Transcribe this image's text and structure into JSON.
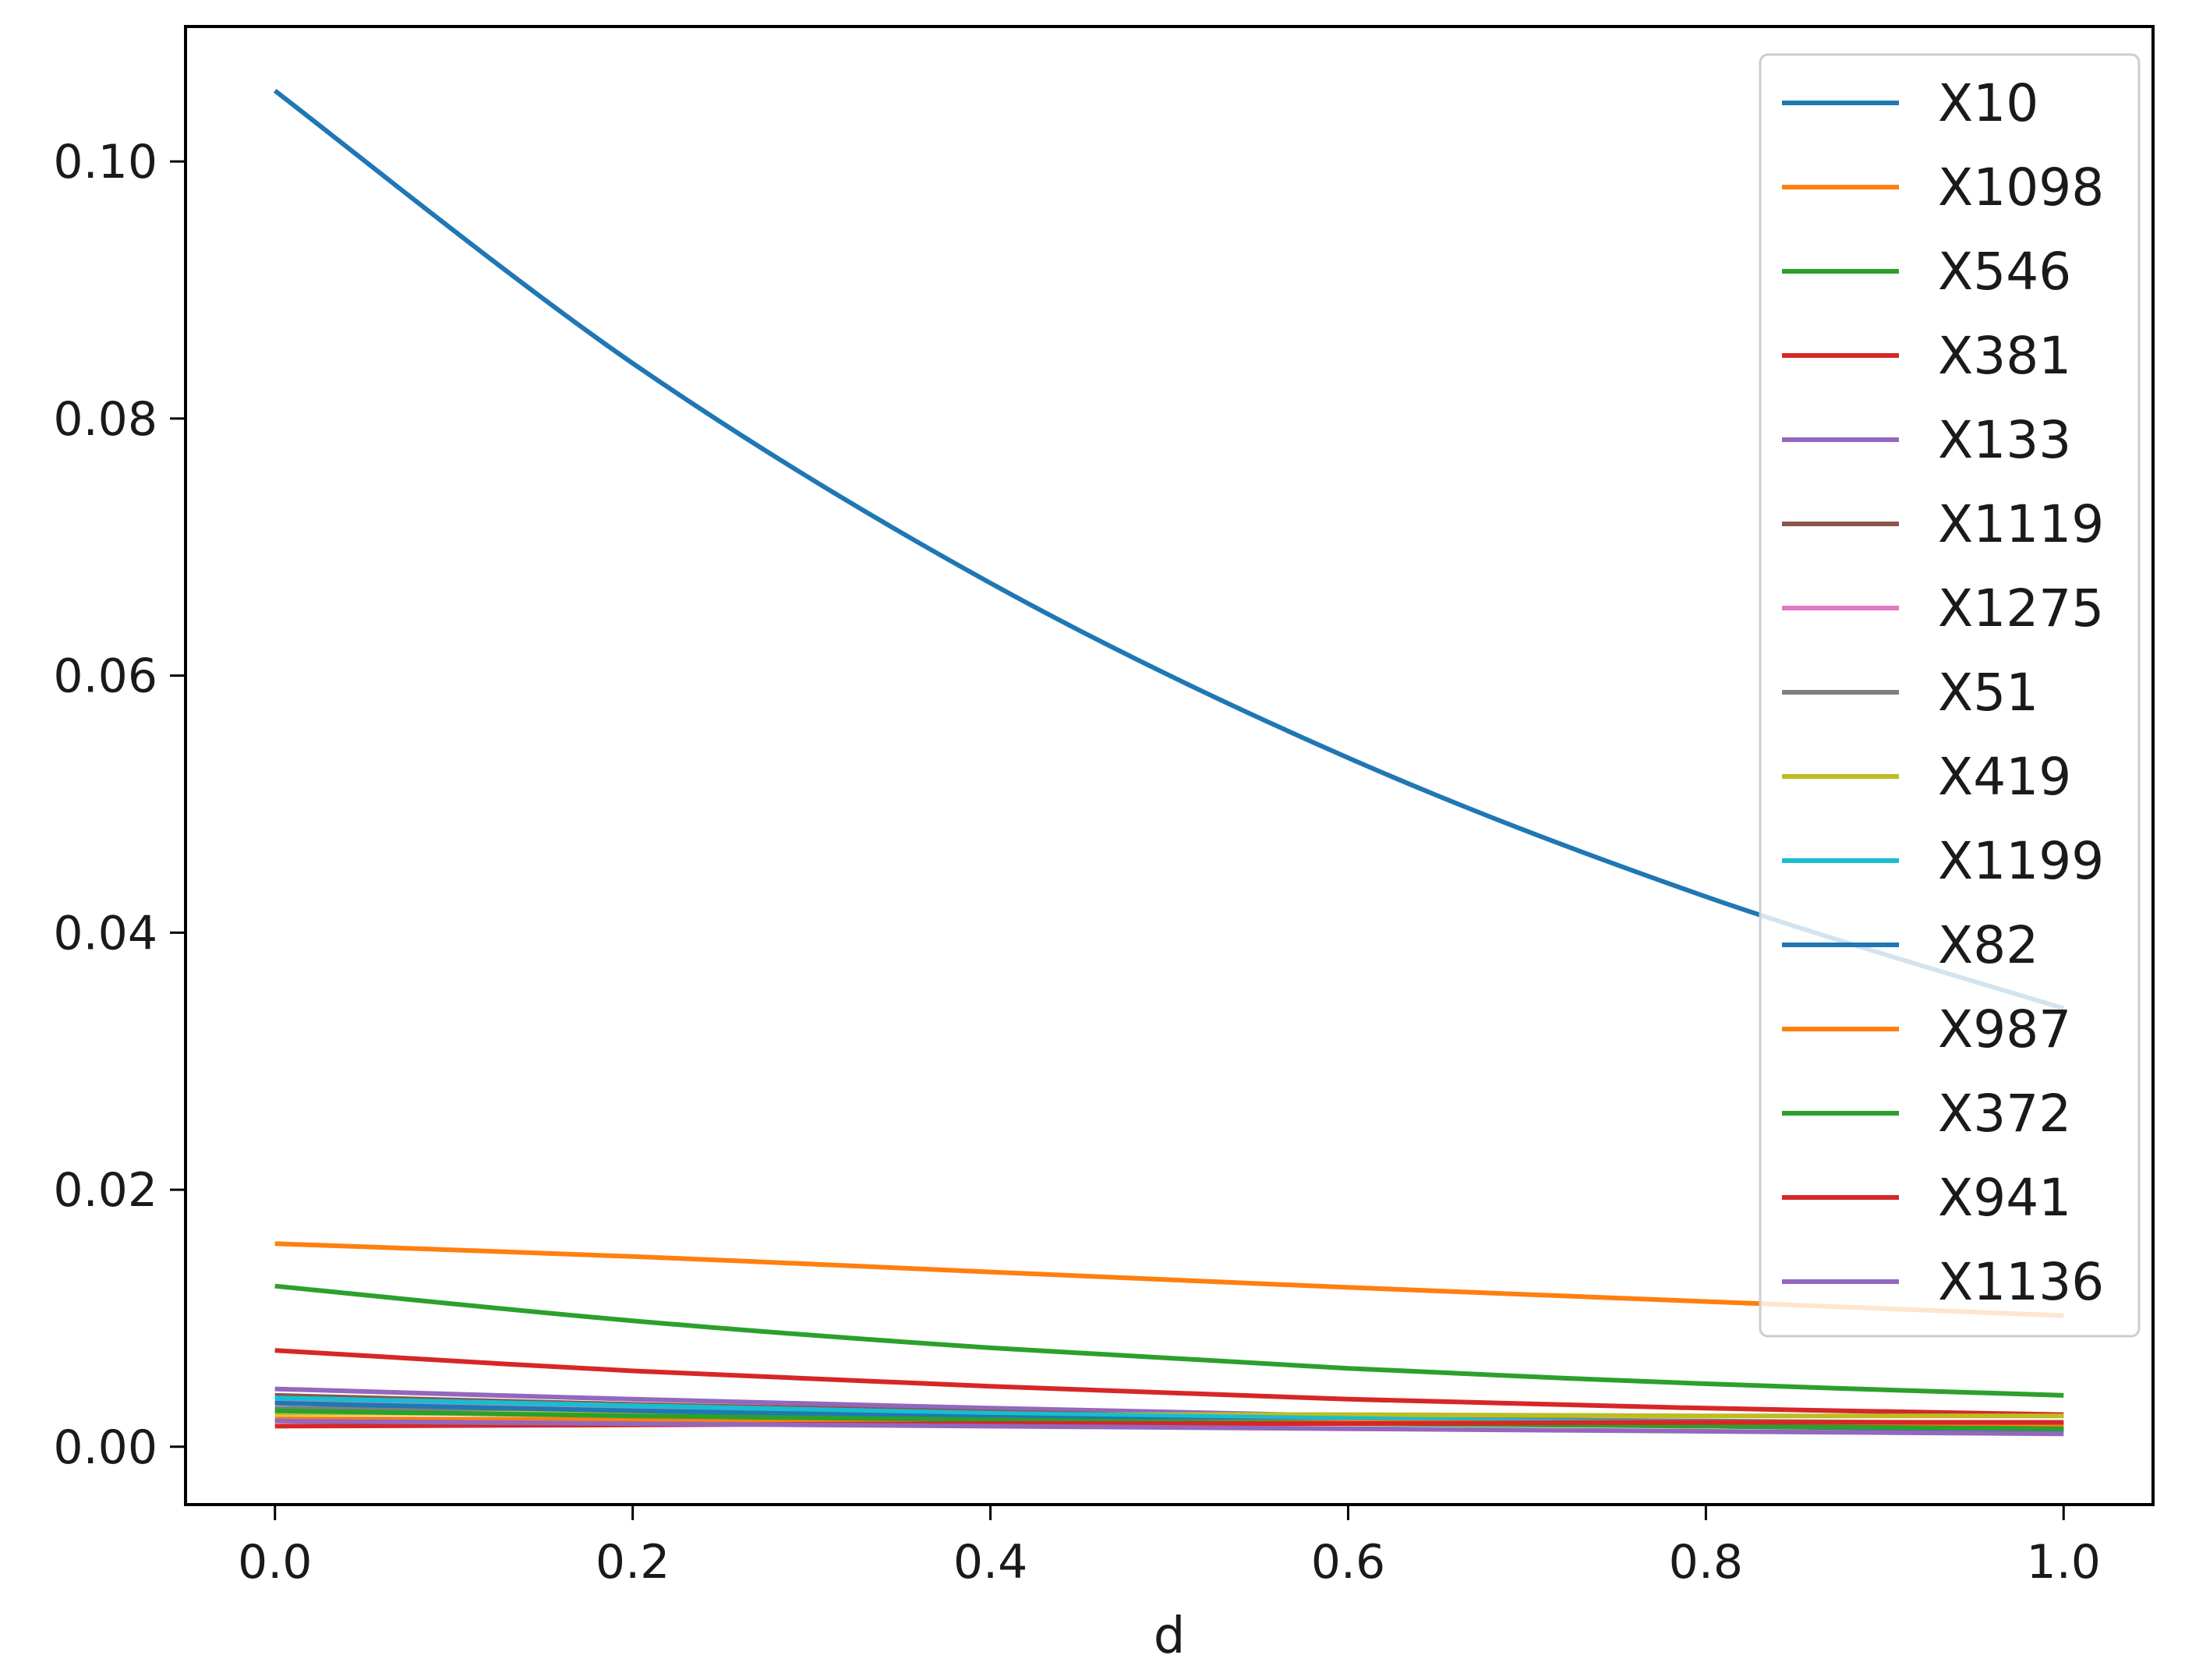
{
  "chart_data": {
    "type": "line",
    "title": "",
    "xlabel": "d",
    "ylabel": "",
    "xlim": [
      -0.05,
      1.05
    ],
    "ylim": [
      -0.0045,
      0.1105
    ],
    "xticks": [
      0.0,
      0.2,
      0.4,
      0.6,
      0.8,
      1.0
    ],
    "xtick_labels": [
      "0.0",
      "0.2",
      "0.4",
      "0.6",
      "0.8",
      "1.0"
    ],
    "yticks": [
      0.0,
      0.02,
      0.04,
      0.06,
      0.08,
      0.1
    ],
    "ytick_labels": [
      "0.00",
      "0.02",
      "0.04",
      "0.06",
      "0.08",
      "0.10"
    ],
    "grid": false,
    "legend_position": "top-right",
    "x": [
      0.0,
      0.2,
      0.4,
      0.6,
      0.8,
      1.0
    ],
    "series": [
      {
        "name": "X10",
        "color": "#1f77b4",
        "values": [
          0.1055,
          0.0843,
          0.0672,
          0.0536,
          0.0428,
          0.0341
        ]
      },
      {
        "name": "X1098",
        "color": "#ff7f0e",
        "values": [
          0.0158,
          0.0148,
          0.0136,
          0.0124,
          0.0113,
          0.0102
        ]
      },
      {
        "name": "X546",
        "color": "#2ca02c",
        "values": [
          0.0125,
          0.0098,
          0.0077,
          0.0061,
          0.0049,
          0.004
        ]
      },
      {
        "name": "X381",
        "color": "#d62728",
        "values": [
          0.0075,
          0.0059,
          0.0047,
          0.0037,
          0.003,
          0.0025
        ]
      },
      {
        "name": "X133",
        "color": "#9467bd",
        "values": [
          0.0045,
          0.0037,
          0.003,
          0.0024,
          0.0019,
          0.0015
        ]
      },
      {
        "name": "X1119",
        "color": "#8c564b",
        "values": [
          0.004,
          0.0033,
          0.0027,
          0.0022,
          0.0018,
          0.0015
        ]
      },
      {
        "name": "X1275",
        "color": "#e377c2",
        "values": [
          0.0035,
          0.0029,
          0.0024,
          0.002,
          0.0017,
          0.0014
        ]
      },
      {
        "name": "X51",
        "color": "#7f7f7f",
        "values": [
          0.003,
          0.0027,
          0.0024,
          0.0022,
          0.002,
          0.0018
        ]
      },
      {
        "name": "X419",
        "color": "#bcbd22",
        "values": [
          0.0026,
          0.0026,
          0.0025,
          0.0025,
          0.0024,
          0.0024
        ]
      },
      {
        "name": "X1199",
        "color": "#17becf",
        "values": [
          0.0038,
          0.0032,
          0.0026,
          0.0022,
          0.0018,
          0.0015
        ]
      },
      {
        "name": "X82",
        "color": "#1f77b4",
        "values": [
          0.0034,
          0.0028,
          0.0023,
          0.0019,
          0.0016,
          0.0013
        ]
      },
      {
        "name": "X987",
        "color": "#ff7f0e",
        "values": [
          0.0022,
          0.0021,
          0.002,
          0.0019,
          0.0018,
          0.0017
        ]
      },
      {
        "name": "X372",
        "color": "#2ca02c",
        "values": [
          0.0028,
          0.0024,
          0.0021,
          0.0018,
          0.0016,
          0.0014
        ]
      },
      {
        "name": "X941",
        "color": "#d62728",
        "values": [
          0.0016,
          0.0017,
          0.0018,
          0.0018,
          0.0019,
          0.0019
        ]
      },
      {
        "name": "X1136",
        "color": "#9467bd",
        "values": [
          0.002,
          0.0018,
          0.0016,
          0.0014,
          0.0012,
          0.001
        ]
      }
    ]
  }
}
